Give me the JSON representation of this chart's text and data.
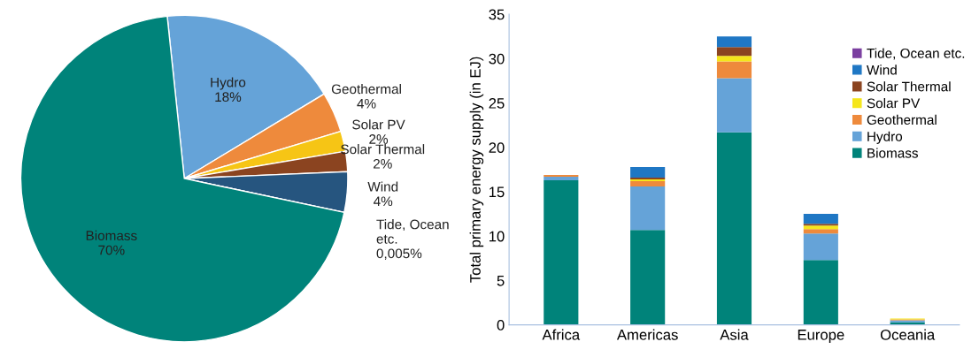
{
  "chart_data": [
    {
      "type": "pie",
      "categories": [
        "Hydro",
        "Geothermal",
        "Solar PV",
        "Solar Thermal",
        "Wind",
        "Tide, Ocean\netc.",
        "Biomass"
      ],
      "values": [
        18,
        4,
        2,
        2,
        4,
        0.005,
        70
      ],
      "value_labels": [
        "18%",
        "4%",
        "2%",
        "2%",
        "4%",
        "0,005%",
        "70%"
      ],
      "colors": [
        "#65a3d8",
        "#ee8a3c",
        "#f6c515",
        "#8b4420",
        "#26557f",
        "#7b3fa0",
        "#00837a"
      ]
    },
    {
      "type": "bar",
      "stacked": true,
      "categories": [
        "Africa",
        "Americas",
        "Asia",
        "Europe",
        "Oceania"
      ],
      "ylabel": "Total primary energy supply (in EJ)",
      "ylim": [
        0,
        35
      ],
      "yticks": [
        0,
        5,
        10,
        15,
        20,
        25,
        30,
        35
      ],
      "legend": "top right",
      "grid": false,
      "series": [
        {
          "name": "Biomass",
          "color": "#00837a",
          "values": [
            16.3,
            10.7,
            21.7,
            7.3,
            0.3
          ]
        },
        {
          "name": "Hydro",
          "color": "#65a3d8",
          "values": [
            0.4,
            4.9,
            6.1,
            3.0,
            0.2
          ]
        },
        {
          "name": "Geothermal",
          "color": "#ee8a3c",
          "values": [
            0.2,
            0.6,
            1.9,
            0.5,
            0.1
          ]
        },
        {
          "name": "Solar PV",
          "color": "#f5e61b",
          "values": [
            0,
            0.2,
            0.6,
            0.4,
            0.1
          ]
        },
        {
          "name": "Solar Thermal",
          "color": "#8b4420",
          "values": [
            0,
            0.2,
            1.0,
            0.2,
            0
          ]
        },
        {
          "name": "Wind",
          "color": "#1f77c4",
          "values": [
            0,
            1.2,
            1.2,
            1.1,
            0
          ]
        },
        {
          "name": "Tide, Ocean etc.",
          "color": "#7b3fa0",
          "values": [
            0,
            0,
            0,
            0,
            0
          ]
        }
      ]
    }
  ]
}
